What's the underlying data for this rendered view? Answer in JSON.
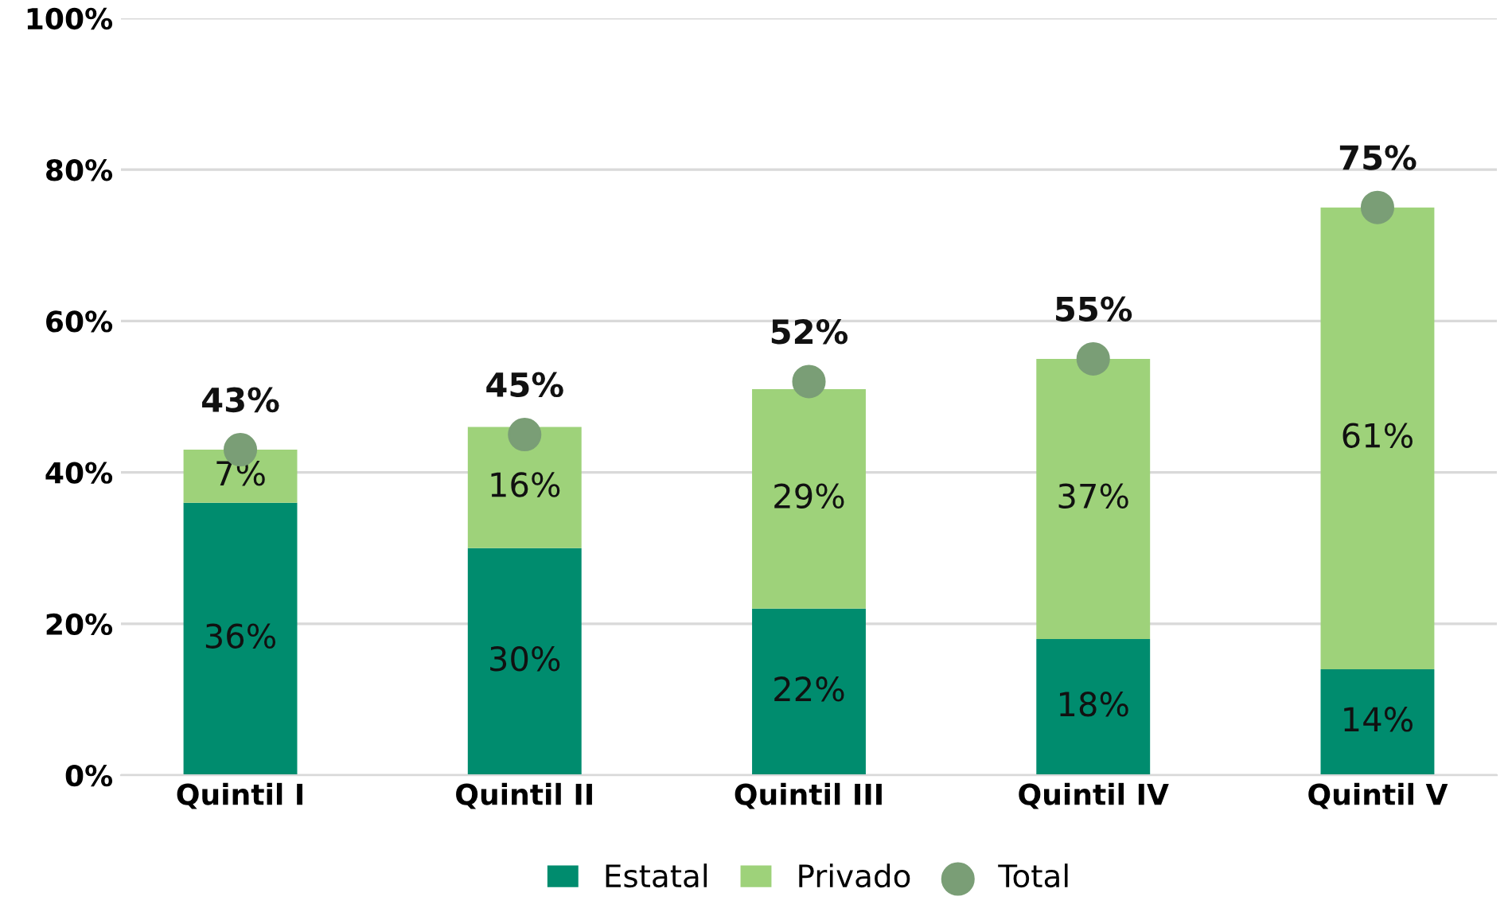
{
  "chart_data": {
    "type": "bar",
    "stacked": true,
    "categories": [
      "Quintil I",
      "Quintil II",
      "Quintil III",
      "Quintil IV",
      "Quintil V"
    ],
    "series": [
      {
        "name": "Estatal",
        "color": "#008c6e",
        "values": [
          36,
          30,
          22,
          18,
          14
        ],
        "value_labels": [
          "36%",
          "30%",
          "22%",
          "18%",
          "14%"
        ]
      },
      {
        "name": "Privado",
        "color": "#9ed27a",
        "values": [
          7,
          16,
          29,
          37,
          61
        ],
        "value_labels": [
          "7%",
          "16%",
          "29%",
          "37%",
          "61%"
        ]
      },
      {
        "name": "Total",
        "type": "scatter",
        "color": "#7a9e76",
        "values": [
          43,
          45,
          52,
          55,
          75
        ],
        "value_labels": [
          "43%",
          "45%",
          "52%",
          "55%",
          "75%"
        ]
      }
    ],
    "ylim": [
      0,
      100
    ],
    "yticks": [
      {
        "value": 0,
        "label": "0%"
      },
      {
        "value": 20,
        "label": "20%"
      },
      {
        "value": 40,
        "label": "40%"
      },
      {
        "value": 60,
        "label": "60%"
      },
      {
        "value": 80,
        "label": "80%"
      },
      {
        "value": 100,
        "label": "100%"
      }
    ],
    "grid": "y",
    "legend": "bottom",
    "marker": "circle"
  }
}
